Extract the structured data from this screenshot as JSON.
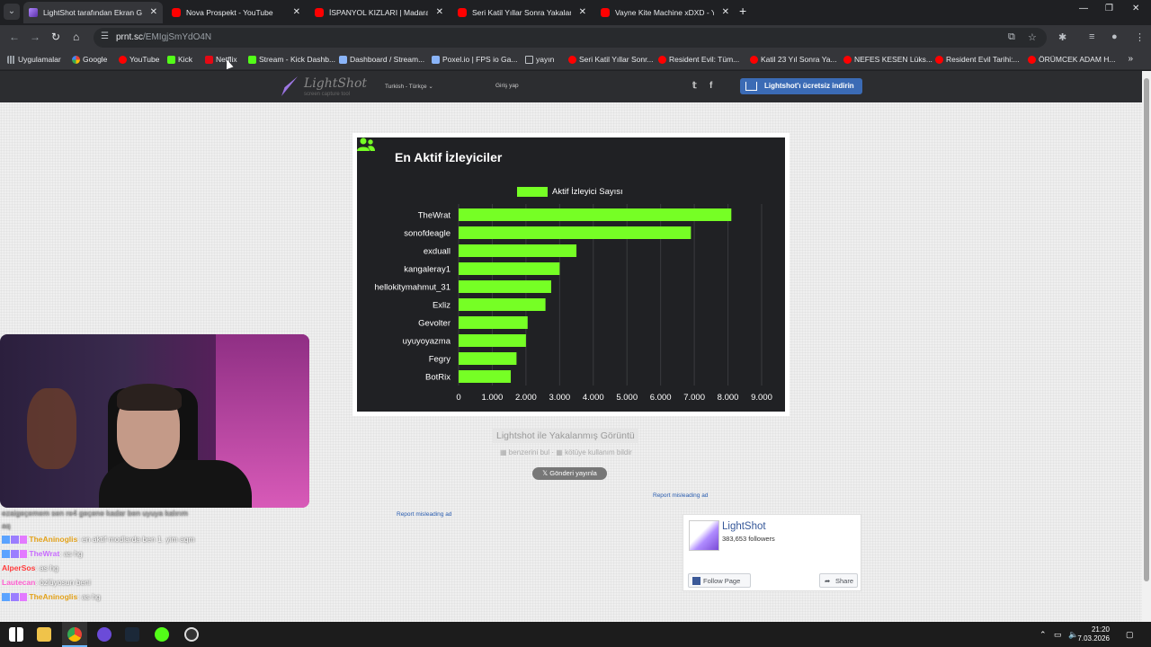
{
  "browser": {
    "tabs": [
      {
        "title": "LightShot tarafından Ekran Görü",
        "favicon": "lightshot-icon",
        "active": true
      },
      {
        "title": "Nova Prospekt - YouTube",
        "favicon": "youtube-icon",
        "active": false
      },
      {
        "title": "İSPANYOL KIZLARI | Madara Ol",
        "favicon": "youtube-icon",
        "active": false
      },
      {
        "title": "Seri Katil Yıllar Sonra Yakalandı",
        "favicon": "youtube-icon",
        "active": false
      },
      {
        "title": "Vayne Kite Machine xDXD - You",
        "favicon": "youtube-icon",
        "active": false
      }
    ],
    "url_host": "prnt.sc",
    "url_path": "/EMIgjSmYdO4N",
    "bookmarks": [
      {
        "label": "Uygulamalar",
        "icon": "apps-icon"
      },
      {
        "label": "Google",
        "icon": "google-icon"
      },
      {
        "label": "YouTube",
        "icon": "youtube-icon"
      },
      {
        "label": "Kick",
        "icon": "kick-icon"
      },
      {
        "label": "Netflix",
        "icon": "netflix-icon"
      },
      {
        "label": "Stream - Kick Dashb...",
        "icon": "kick-icon"
      },
      {
        "label": "Dashboard / Stream...",
        "icon": "dashboard-icon"
      },
      {
        "label": "Poxel.io | FPS io Ga...",
        "icon": "poxel-icon"
      },
      {
        "label": "yayın",
        "icon": "folder-icon"
      },
      {
        "label": "Seri Katil Yıllar Sonr...",
        "icon": "youtube-icon"
      },
      {
        "label": "Resident Evil: Tüm...",
        "icon": "youtube-icon"
      },
      {
        "label": "Katil 23 Yıl Sonra Ya...",
        "icon": "youtube-icon"
      },
      {
        "label": "NEFES KESEN Lüks...",
        "icon": "youtube-icon"
      },
      {
        "label": "Resident Evil Tarihi:...",
        "icon": "youtube-icon"
      },
      {
        "label": "ÖRÜMCEK ADAM H...",
        "icon": "youtube-icon"
      }
    ]
  },
  "lightshot": {
    "logo": "LightShot",
    "logo_sub": "screen capture tool",
    "language": "Turkish - Türkçe",
    "login": "Giriş yap",
    "download_button": "Lightshot'ı ücretsiz indirin",
    "caption": "Lightshot ile Yakalanmış Görüntü",
    "find_similar": "benzerini bul",
    "report_abuse": "kötüye kullanım bildir",
    "tweet_button": "Gönderi yayınla",
    "report_ad_1": "Report misleading ad",
    "report_ad_2": "Report misleading ad",
    "fb": {
      "name": "LightShot",
      "followers": "383,653 followers",
      "follow": "Follow Page",
      "share": "Share"
    }
  },
  "chart_data": {
    "type": "bar",
    "orientation": "horizontal",
    "title": "En Aktif İzleyiciler",
    "legend": "Aktif İzleyici Sayısı",
    "color": "#76ff25",
    "categories": [
      "TheWrat",
      "sonofdeagle",
      "exduall",
      "kangaleray1",
      "hellokitymahmut_31",
      "Exliz",
      "Gevolter",
      "uyuyoyazma",
      "Fegry",
      "BotRix"
    ],
    "values": [
      8100,
      6900,
      3500,
      3000,
      2750,
      2580,
      2050,
      2000,
      1720,
      1550
    ],
    "xticks": [
      "0",
      "1.000",
      "2.000",
      "3.000",
      "4.000",
      "5.000",
      "6.000",
      "7.000",
      "8.000",
      "9.000"
    ],
    "xlim": [
      0,
      9000
    ],
    "grid": true
  },
  "chat": [
    {
      "user": "",
      "user_color": "#aaa",
      "text": "ezaigeçemem sen re4 geçene kadar ben uyuya kalırım aq",
      "badges": false,
      "dim": true
    },
    {
      "user": "TheAninoglis",
      "user_color": "#e3a21a",
      "text": ": en aktif modlarda ben 1. yim aqm",
      "badges": true,
      "dim": false
    },
    {
      "user": "TheWrat",
      "user_color": "#c86bff",
      "text": ": as hg",
      "badges": true,
      "dim": false
    },
    {
      "user": "AlperSos",
      "user_color": "#ff3b3b",
      "text": ": as hg",
      "badges": false,
      "dim": false
    },
    {
      "user": "Lautecan",
      "user_color": "#ff5fd1",
      "text": ": özlüyosun beni",
      "badges": false,
      "dim": false
    },
    {
      "user": "TheAninoglis",
      "user_color": "#e3a21a",
      "text": ": as hg",
      "badges": true,
      "dim": false
    }
  ],
  "taskbar": {
    "time": "21:20",
    "date": "7.03.2026"
  }
}
